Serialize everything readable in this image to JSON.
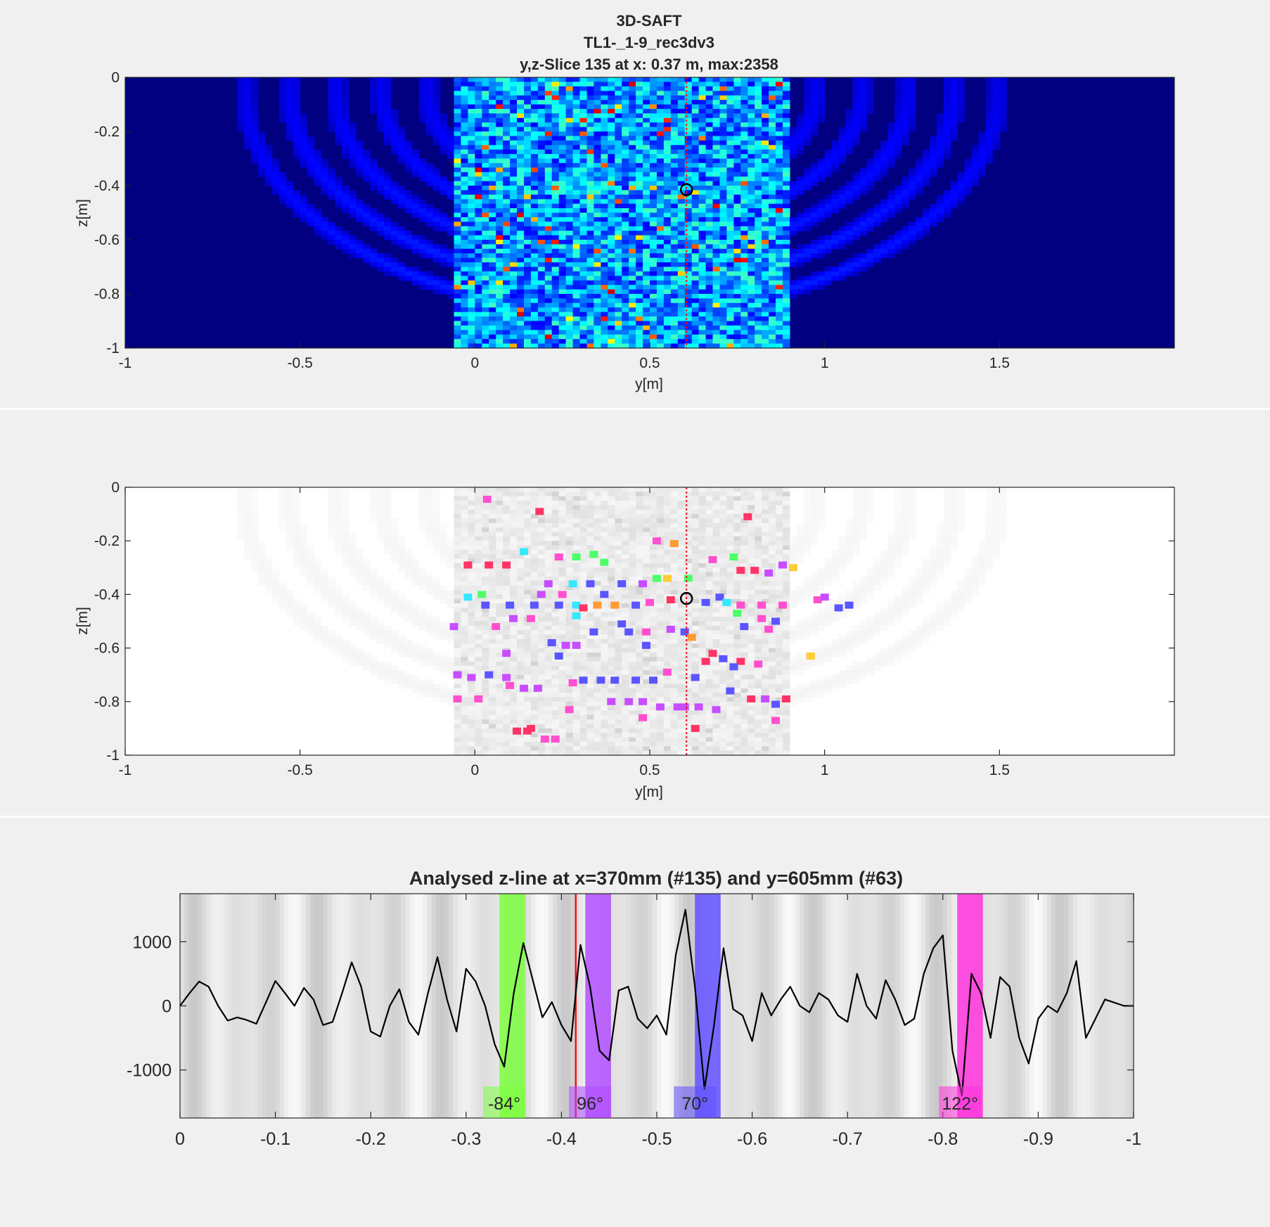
{
  "colors": {
    "figure_bg": "#f0f0f0",
    "axes_dark": "#000080",
    "cursor": "#e8141e",
    "marker": "#000000",
    "curve": "#000000"
  },
  "panel1": {
    "title_lines": [
      "3D-SAFT",
      "TL1-_1-9_rec3dv3",
      "y,z-Slice 135 at x: 0.37 m, max:2358"
    ],
    "xlabel": "y[m]",
    "ylabel": "z[m]",
    "xticks": [
      -1,
      -0.5,
      0,
      0.5,
      1,
      1.5
    ],
    "xtick_labels": [
      "-1",
      "-0.5",
      "0",
      "0.5",
      "1",
      "1.5"
    ],
    "yticks": [
      0,
      -0.2,
      -0.4,
      -0.6,
      -0.8,
      -1
    ],
    "ytick_labels": [
      "0",
      "-0.2",
      "-0.4",
      "-0.6",
      "-0.8",
      "-1"
    ]
  },
  "panel2": {
    "xlabel": "y[m]",
    "ylabel": "z[m]",
    "xticks": [
      -1,
      -0.5,
      0,
      0.5,
      1,
      1.5
    ],
    "xtick_labels": [
      "-1",
      "-0.5",
      "0",
      "0.5",
      "1",
      "1.5"
    ],
    "yticks": [
      0,
      -0.2,
      -0.4,
      -0.6,
      -0.8,
      -1
    ],
    "ytick_labels": [
      "0",
      "-0.2",
      "-0.4",
      "-0.6",
      "-0.8",
      "-1"
    ]
  },
  "panel3": {
    "title": "Analysed z-line at x=370mm (#135) and y=605mm (#63)",
    "xticks": [
      0,
      -0.1,
      -0.2,
      -0.3,
      -0.4,
      -0.5,
      -0.6,
      -0.7,
      -0.8,
      -0.9,
      -1
    ],
    "xtick_labels": [
      "0",
      "-0.1",
      "-0.2",
      "-0.3",
      "-0.4",
      "-0.5",
      "-0.6",
      "-0.7",
      "-0.8",
      "-0.9",
      "-1"
    ],
    "yticks": [
      1000,
      0,
      -1000
    ],
    "ytick_labels": [
      "1000",
      "0",
      "-1000"
    ],
    "annotations": [
      "-84°",
      "96°",
      "70°",
      "122°"
    ]
  },
  "chart_data": [
    {
      "type": "heatmap",
      "title": "3D-SAFT / TL1-_1-9_rec3dv3 / y,z-Slice 135 at x: 0.37 m, max:2358",
      "xlabel": "y[m]",
      "ylabel": "z[m]",
      "xlim": [
        -1,
        2
      ],
      "ylim": [
        -1,
        0
      ],
      "colormap": "jet",
      "max": 2358,
      "cursor_y": 0.605,
      "marker": {
        "y": 0.605,
        "z": -0.415
      }
    },
    {
      "type": "scatter",
      "xlabel": "y[m]",
      "ylabel": "z[m]",
      "xlim": [
        -1,
        2
      ],
      "ylim": [
        -1,
        0
      ],
      "background": "grayscale amplitude",
      "cursor_y": 0.605,
      "marker": {
        "y": 0.605,
        "z": -0.415
      },
      "points": [
        {
          "y": 0.035,
          "z": -0.045,
          "color": "#ff4fcf"
        },
        {
          "y": 0.185,
          "z": -0.09,
          "color": "#ff3366"
        },
        {
          "y": 0.78,
          "z": -0.11,
          "color": "#ff3366"
        },
        {
          "y": 0.52,
          "z": -0.2,
          "color": "#ff4fcf"
        },
        {
          "y": 0.57,
          "z": -0.21,
          "color": "#ff9a33"
        },
        {
          "y": 0.14,
          "z": -0.24,
          "color": "#33e8ff"
        },
        {
          "y": 0.34,
          "z": -0.25,
          "color": "#4dff66"
        },
        {
          "y": 0.24,
          "z": -0.26,
          "color": "#ff4fcf"
        },
        {
          "y": 0.29,
          "z": -0.26,
          "color": "#4dff66"
        },
        {
          "y": 0.74,
          "z": -0.26,
          "color": "#4dff66"
        },
        {
          "y": 0.68,
          "z": -0.27,
          "color": "#ff4fcf"
        },
        {
          "y": 0.37,
          "z": -0.28,
          "color": "#4dff66"
        },
        {
          "y": -0.02,
          "z": -0.29,
          "color": "#ff3366"
        },
        {
          "y": 0.04,
          "z": -0.29,
          "color": "#ff3366"
        },
        {
          "y": 0.09,
          "z": -0.29,
          "color": "#ff3366"
        },
        {
          "y": 0.88,
          "z": -0.29,
          "color": "#c84dff"
        },
        {
          "y": 0.91,
          "z": -0.3,
          "color": "#ffcc33"
        },
        {
          "y": 0.76,
          "z": -0.31,
          "color": "#ff3366"
        },
        {
          "y": 0.8,
          "z": -0.31,
          "color": "#ff3366"
        },
        {
          "y": 0.84,
          "z": -0.32,
          "color": "#c84dff"
        },
        {
          "y": 0.52,
          "z": -0.34,
          "color": "#4dff66"
        },
        {
          "y": 0.55,
          "z": -0.34,
          "color": "#ffcc33"
        },
        {
          "y": 0.61,
          "z": -0.34,
          "color": "#4dff66"
        },
        {
          "y": 0.21,
          "z": -0.36,
          "color": "#c84dff"
        },
        {
          "y": 0.28,
          "z": -0.36,
          "color": "#33e8ff"
        },
        {
          "y": 0.33,
          "z": -0.36,
          "color": "#5a55ff"
        },
        {
          "y": 0.42,
          "z": -0.36,
          "color": "#5a55ff"
        },
        {
          "y": 0.48,
          "z": -0.36,
          "color": "#c84dff"
        },
        {
          "y": -0.02,
          "z": -0.41,
          "color": "#33e8ff"
        },
        {
          "y": 0.02,
          "z": -0.4,
          "color": "#4dff66"
        },
        {
          "y": 0.19,
          "z": -0.4,
          "color": "#c84dff"
        },
        {
          "y": 0.25,
          "z": -0.4,
          "color": "#ff4fcf"
        },
        {
          "y": 0.37,
          "z": -0.4,
          "color": "#5a55ff"
        },
        {
          "y": 0.7,
          "z": -0.41,
          "color": "#5a55ff"
        },
        {
          "y": 0.98,
          "z": -0.42,
          "color": "#ff4fcf"
        },
        {
          "y": 1.0,
          "z": -0.41,
          "color": "#c84dff"
        },
        {
          "y": 0.03,
          "z": -0.44,
          "color": "#5a55ff"
        },
        {
          "y": 0.1,
          "z": -0.44,
          "color": "#5a55ff"
        },
        {
          "y": 0.17,
          "z": -0.44,
          "color": "#5a55ff"
        },
        {
          "y": 0.24,
          "z": -0.44,
          "color": "#5a55ff"
        },
        {
          "y": 0.29,
          "z": -0.44,
          "color": "#33e8ff"
        },
        {
          "y": 0.31,
          "z": -0.45,
          "color": "#ff3366"
        },
        {
          "y": 0.35,
          "z": -0.44,
          "color": "#ff9a33"
        },
        {
          "y": 0.4,
          "z": -0.44,
          "color": "#ff9a33"
        },
        {
          "y": 0.46,
          "z": -0.44,
          "color": "#5a55ff"
        },
        {
          "y": 0.5,
          "z": -0.43,
          "color": "#ff4fcf"
        },
        {
          "y": 0.56,
          "z": -0.42,
          "color": "#ff3366"
        },
        {
          "y": 0.66,
          "z": -0.43,
          "color": "#5a55ff"
        },
        {
          "y": 0.72,
          "z": -0.43,
          "color": "#33e8ff"
        },
        {
          "y": 0.76,
          "z": -0.44,
          "color": "#ff4fcf"
        },
        {
          "y": 0.82,
          "z": -0.44,
          "color": "#ff4fcf"
        },
        {
          "y": 0.88,
          "z": -0.44,
          "color": "#ff4fcf"
        },
        {
          "y": 1.04,
          "z": -0.45,
          "color": "#5a55ff"
        },
        {
          "y": 1.07,
          "z": -0.44,
          "color": "#5a55ff"
        },
        {
          "y": 0.75,
          "z": -0.47,
          "color": "#4dff66"
        },
        {
          "y": 0.11,
          "z": -0.49,
          "color": "#c84dff"
        },
        {
          "y": 0.16,
          "z": -0.49,
          "color": "#ff4fcf"
        },
        {
          "y": 0.29,
          "z": -0.48,
          "color": "#33e8ff"
        },
        {
          "y": 0.42,
          "z": -0.51,
          "color": "#5a55ff"
        },
        {
          "y": 0.82,
          "z": -0.49,
          "color": "#ff4fcf"
        },
        {
          "y": 0.86,
          "z": -0.5,
          "color": "#5a55ff"
        },
        {
          "y": -0.06,
          "z": -0.52,
          "color": "#c84dff"
        },
        {
          "y": 0.06,
          "z": -0.52,
          "color": "#ff4fcf"
        },
        {
          "y": 0.34,
          "z": -0.54,
          "color": "#5a55ff"
        },
        {
          "y": 0.44,
          "z": -0.54,
          "color": "#5a55ff"
        },
        {
          "y": 0.49,
          "z": -0.54,
          "color": "#ff4fcf"
        },
        {
          "y": 0.56,
          "z": -0.53,
          "color": "#c84dff"
        },
        {
          "y": 0.6,
          "z": -0.54,
          "color": "#5a55ff"
        },
        {
          "y": 0.77,
          "z": -0.52,
          "color": "#5a55ff"
        },
        {
          "y": 0.84,
          "z": -0.53,
          "color": "#ff4fcf"
        },
        {
          "y": 0.62,
          "z": -0.56,
          "color": "#ff9a33"
        },
        {
          "y": 0.22,
          "z": -0.58,
          "color": "#5a55ff"
        },
        {
          "y": 0.26,
          "z": -0.59,
          "color": "#c84dff"
        },
        {
          "y": 0.29,
          "z": -0.59,
          "color": "#c84dff"
        },
        {
          "y": 0.49,
          "z": -0.59,
          "color": "#5a55ff"
        },
        {
          "y": 0.09,
          "z": -0.62,
          "color": "#c84dff"
        },
        {
          "y": 0.24,
          "z": -0.63,
          "color": "#5a55ff"
        },
        {
          "y": 0.68,
          "z": -0.62,
          "color": "#ff3366"
        },
        {
          "y": 0.71,
          "z": -0.64,
          "color": "#5a55ff"
        },
        {
          "y": 0.76,
          "z": -0.65,
          "color": "#ff3366"
        },
        {
          "y": 0.81,
          "z": -0.66,
          "color": "#ff4fcf"
        },
        {
          "y": 0.96,
          "z": -0.63,
          "color": "#ffcc33"
        },
        {
          "y": 0.66,
          "z": -0.65,
          "color": "#ff3366"
        },
        {
          "y": 0.74,
          "z": -0.67,
          "color": "#5a55ff"
        },
        {
          "y": 0.55,
          "z": -0.69,
          "color": "#ff4fcf"
        },
        {
          "y": 0.63,
          "z": -0.71,
          "color": "#5a55ff"
        },
        {
          "y": -0.05,
          "z": -0.7,
          "color": "#c84dff"
        },
        {
          "y": -0.01,
          "z": -0.71,
          "color": "#c84dff"
        },
        {
          "y": 0.04,
          "z": -0.7,
          "color": "#5a55ff"
        },
        {
          "y": 0.09,
          "z": -0.71,
          "color": "#c84dff"
        },
        {
          "y": 0.31,
          "z": -0.72,
          "color": "#5a55ff"
        },
        {
          "y": 0.36,
          "z": -0.72,
          "color": "#5a55ff"
        },
        {
          "y": 0.4,
          "z": -0.72,
          "color": "#5a55ff"
        },
        {
          "y": 0.46,
          "z": -0.72,
          "color": "#5a55ff"
        },
        {
          "y": 0.28,
          "z": -0.73,
          "color": "#ff4fcf"
        },
        {
          "y": 0.51,
          "z": -0.72,
          "color": "#5a55ff"
        },
        {
          "y": 0.1,
          "z": -0.74,
          "color": "#ff4fcf"
        },
        {
          "y": 0.14,
          "z": -0.75,
          "color": "#c84dff"
        },
        {
          "y": 0.18,
          "z": -0.75,
          "color": "#c84dff"
        },
        {
          "y": 0.73,
          "z": -0.76,
          "color": "#5a55ff"
        },
        {
          "y": -0.05,
          "z": -0.79,
          "color": "#ff4fcf"
        },
        {
          "y": 0.01,
          "z": -0.79,
          "color": "#ff4fcf"
        },
        {
          "y": 0.39,
          "z": -0.8,
          "color": "#c84dff"
        },
        {
          "y": 0.44,
          "z": -0.8,
          "color": "#c84dff"
        },
        {
          "y": 0.48,
          "z": -0.8,
          "color": "#c84dff"
        },
        {
          "y": 0.79,
          "z": -0.79,
          "color": "#ff3366"
        },
        {
          "y": 0.83,
          "z": -0.79,
          "color": "#c84dff"
        },
        {
          "y": 0.89,
          "z": -0.79,
          "color": "#ff3366"
        },
        {
          "y": 0.53,
          "z": -0.82,
          "color": "#c84dff"
        },
        {
          "y": 0.58,
          "z": -0.82,
          "color": "#c84dff"
        },
        {
          "y": 0.6,
          "z": -0.82,
          "color": "#c84dff"
        },
        {
          "y": 0.64,
          "z": -0.82,
          "color": "#c84dff"
        },
        {
          "y": 0.69,
          "z": -0.83,
          "color": "#c84dff"
        },
        {
          "y": 0.86,
          "z": -0.81,
          "color": "#5a55ff"
        },
        {
          "y": 0.27,
          "z": -0.83,
          "color": "#ff4fcf"
        },
        {
          "y": 0.48,
          "z": -0.86,
          "color": "#ff4fcf"
        },
        {
          "y": 0.86,
          "z": -0.87,
          "color": "#ff4fcf"
        },
        {
          "y": 0.12,
          "z": -0.91,
          "color": "#ff3366"
        },
        {
          "y": 0.15,
          "z": -0.91,
          "color": "#ff3366"
        },
        {
          "y": 0.16,
          "z": -0.9,
          "color": "#ff3366"
        },
        {
          "y": 0.2,
          "z": -0.94,
          "color": "#ff4fcf"
        },
        {
          "y": 0.23,
          "z": -0.94,
          "color": "#ff4fcf"
        },
        {
          "y": 0.63,
          "z": -0.9,
          "color": "#ff3366"
        }
      ]
    },
    {
      "type": "line",
      "title": "Analysed z-line at x=370mm (#135) and y=605mm (#63)",
      "xlim": [
        0,
        -1
      ],
      "ylim": [
        -1750,
        1750
      ],
      "cursor_x": -0.415,
      "x": [
        0,
        -0.01,
        -0.02,
        -0.03,
        -0.04,
        -0.05,
        -0.06,
        -0.07,
        -0.08,
        -0.09,
        -0.1,
        -0.11,
        -0.12,
        -0.13,
        -0.14,
        -0.15,
        -0.16,
        -0.17,
        -0.18,
        -0.19,
        -0.2,
        -0.21,
        -0.22,
        -0.23,
        -0.24,
        -0.25,
        -0.26,
        -0.27,
        -0.28,
        -0.29,
        -0.3,
        -0.31,
        -0.32,
        -0.33,
        -0.34,
        -0.35,
        -0.36,
        -0.37,
        -0.38,
        -0.39,
        -0.4,
        -0.41,
        -0.42,
        -0.43,
        -0.44,
        -0.45,
        -0.46,
        -0.47,
        -0.48,
        -0.49,
        -0.5,
        -0.51,
        -0.52,
        -0.53,
        -0.54,
        -0.55,
        -0.56,
        -0.57,
        -0.58,
        -0.59,
        -0.6,
        -0.61,
        -0.62,
        -0.63,
        -0.64,
        -0.65,
        -0.66,
        -0.67,
        -0.68,
        -0.69,
        -0.7,
        -0.71,
        -0.72,
        -0.73,
        -0.74,
        -0.75,
        -0.76,
        -0.77,
        -0.78,
        -0.79,
        -0.8,
        -0.81,
        -0.82,
        -0.83,
        -0.84,
        -0.85,
        -0.86,
        -0.87,
        -0.88,
        -0.89,
        -0.9,
        -0.91,
        -0.92,
        -0.93,
        -0.94,
        -0.95,
        -0.96,
        -0.97,
        -0.98,
        -0.99,
        -1
      ],
      "y": [
        0,
        200,
        380,
        300,
        0,
        -230,
        -180,
        -220,
        -280,
        50,
        390,
        200,
        0,
        280,
        100,
        -300,
        -250,
        200,
        680,
        300,
        -400,
        -480,
        0,
        260,
        -250,
        -450,
        200,
        760,
        100,
        -400,
        580,
        380,
        0,
        -600,
        -950,
        200,
        980,
        400,
        -180,
        60,
        -300,
        -550,
        950,
        300,
        -700,
        -850,
        240,
        300,
        -200,
        -350,
        -150,
        -450,
        800,
        1500,
        300,
        -1300,
        -300,
        900,
        -50,
        -150,
        -550,
        200,
        -150,
        100,
        300,
        0,
        -100,
        200,
        100,
        -150,
        -250,
        500,
        0,
        -200,
        400,
        100,
        -300,
        -200,
        500,
        900,
        1100,
        -700,
        -1400,
        500,
        200,
        -500,
        450,
        300,
        -500,
        -900,
        -200,
        0,
        -100,
        200,
        700,
        -500,
        -200,
        100,
        50,
        0,
        0
      ]
    }
  ]
}
